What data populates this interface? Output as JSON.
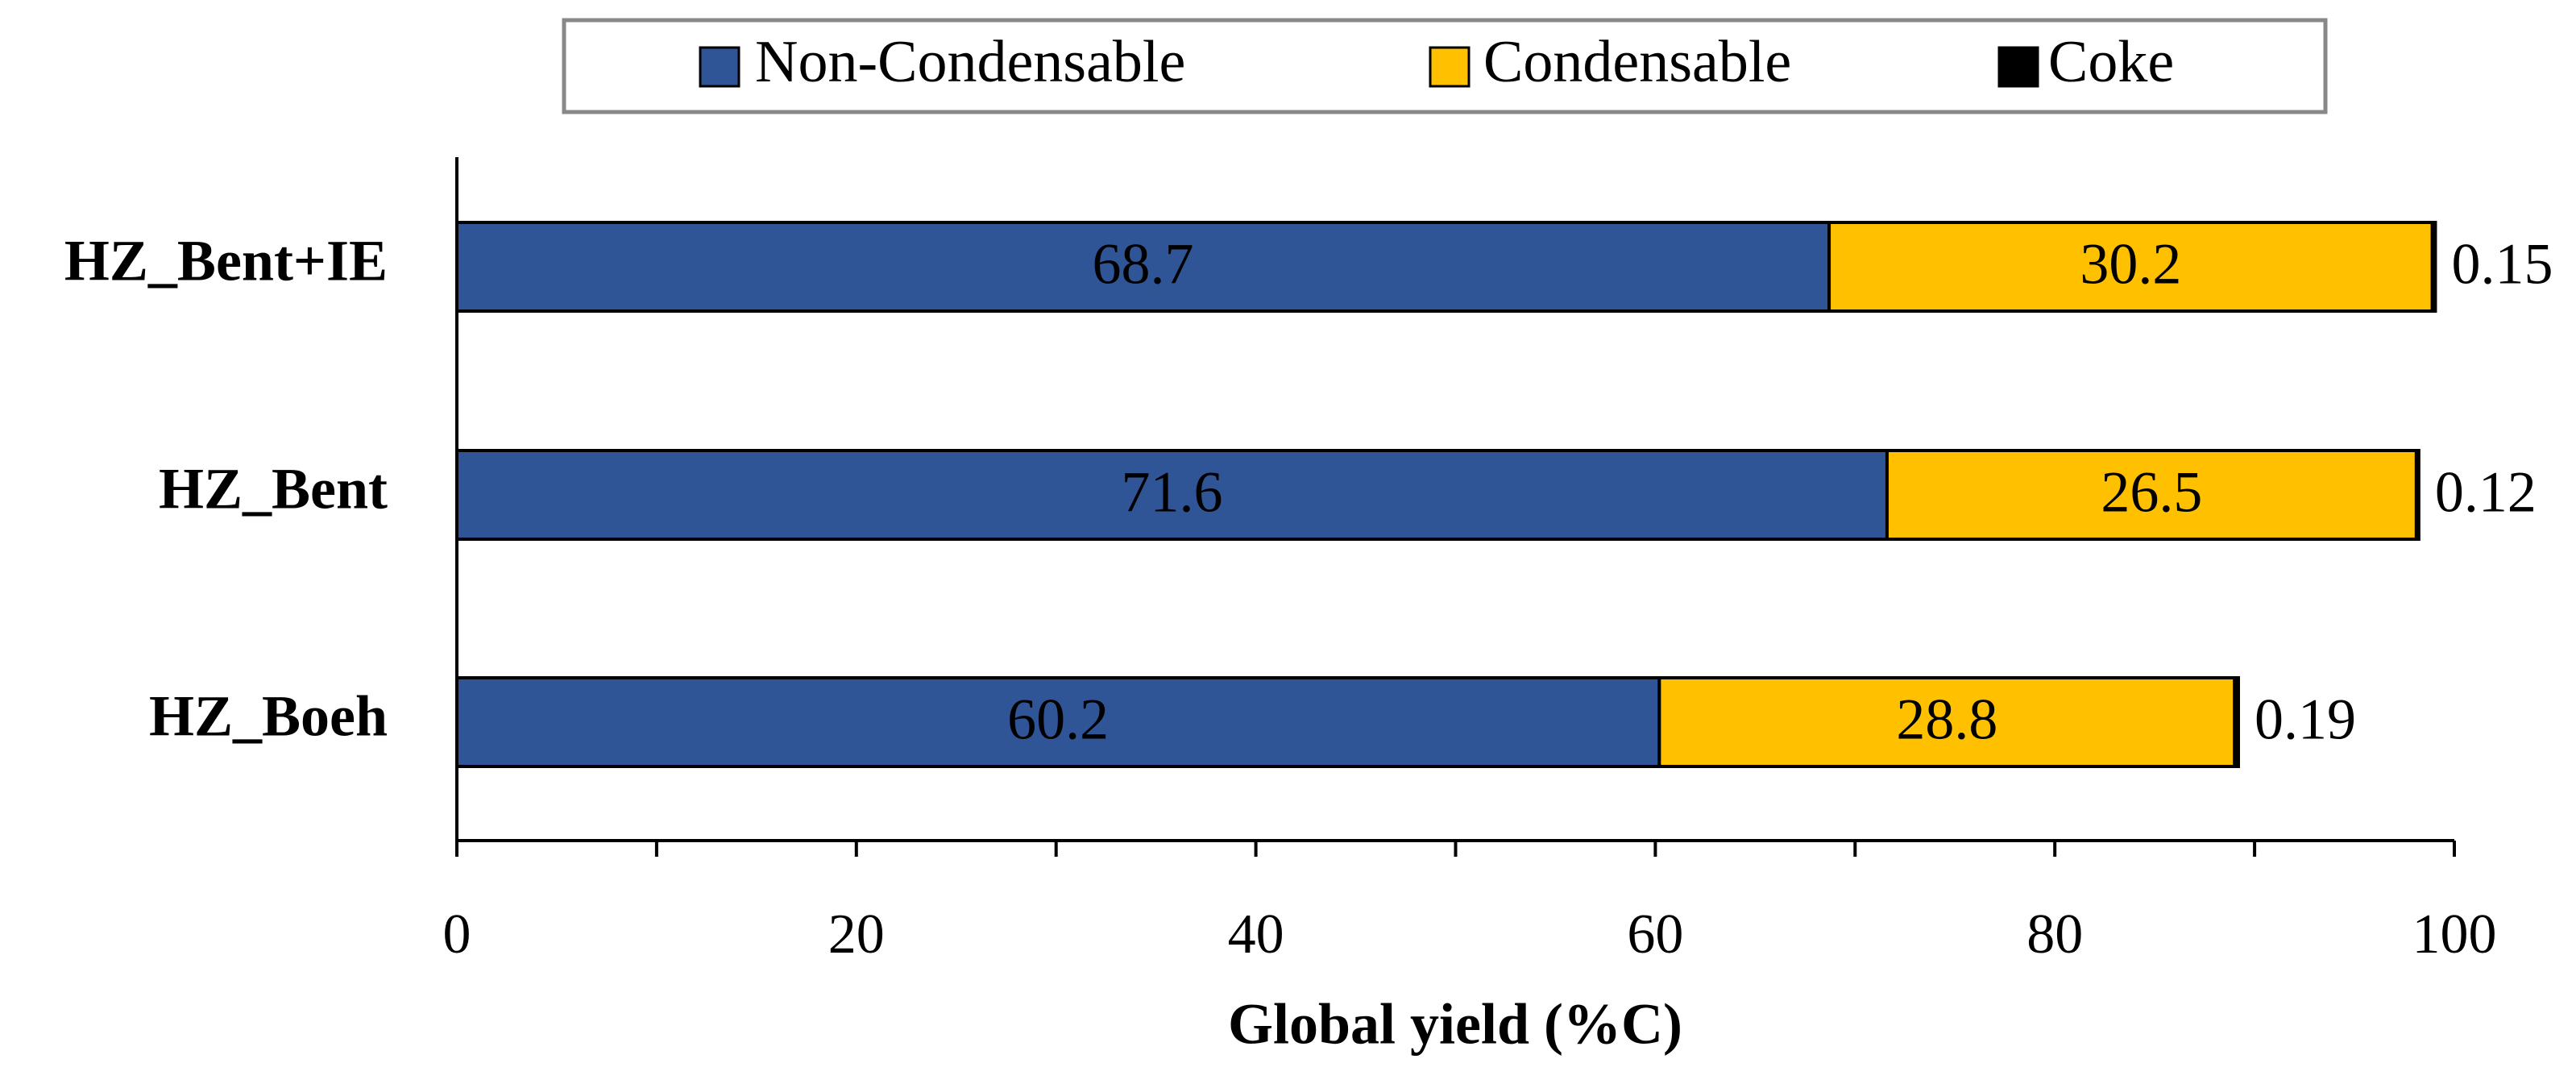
{
  "chart_data": {
    "type": "stacked_barh",
    "xlabel": "Global yield (%C)",
    "categories": [
      "HZ_Bent+IE",
      "HZ_Bent",
      "HZ_Boeh"
    ],
    "series": [
      {
        "name": "Non-Condensable",
        "color": "#2f5597",
        "values": [
          68.7,
          71.6,
          60.2
        ]
      },
      {
        "name": "Condensable",
        "color": "#ffc000",
        "values": [
          30.2,
          26.5,
          28.8
        ]
      },
      {
        "name": "Coke",
        "color": "#000000",
        "values": [
          0.15,
          0.12,
          0.19
        ]
      }
    ],
    "xlim": [
      0,
      100
    ],
    "xticks": [
      0,
      20,
      40,
      60,
      80,
      100
    ]
  }
}
